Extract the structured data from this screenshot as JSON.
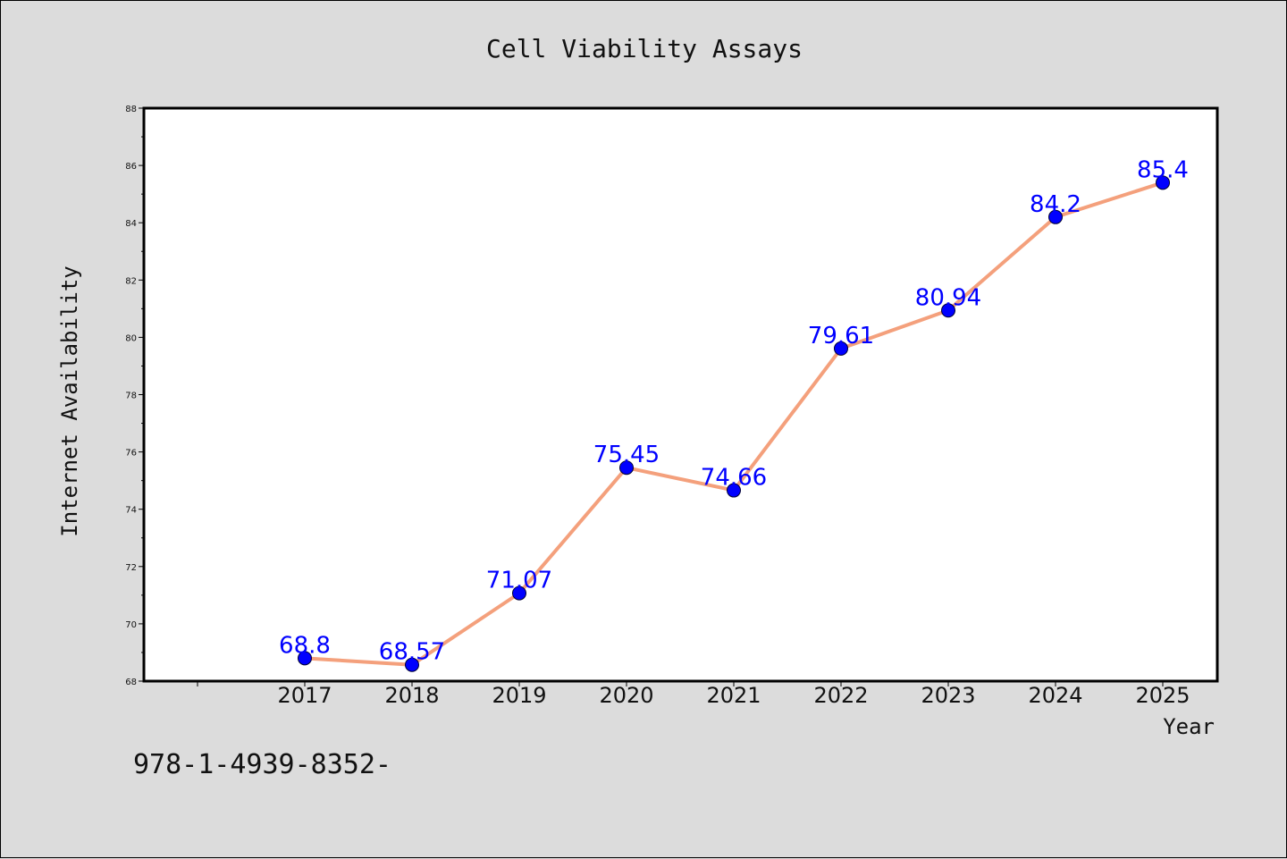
{
  "chart_data": {
    "type": "line",
    "title": "Cell Viability Assays",
    "xlabel": "Year",
    "ylabel": "Internet Availability",
    "categories": [
      "2017",
      "2018",
      "2019",
      "2020",
      "2021",
      "2022",
      "2023",
      "2024",
      "2025"
    ],
    "series": [
      {
        "values": [
          68.8,
          68.57,
          71.07,
          75.45,
          74.66,
          79.61,
          80.94,
          84.2,
          85.4
        ],
        "data_labels": [
          "68.8",
          "68.57",
          "71.07",
          "75.45",
          "74.66",
          "79.61",
          "80.94",
          "84.2",
          "85.4"
        ],
        "line_color": "#f4a07c",
        "marker_color": "#0000ff"
      }
    ],
    "ylim": [
      68,
      88
    ],
    "yticks": [
      "68",
      "70",
      "72",
      "74",
      "76",
      "78",
      "80",
      "82",
      "84",
      "86",
      "88"
    ],
    "grid": false,
    "legend": "none"
  },
  "footnote": "978-1-4939-8352-"
}
